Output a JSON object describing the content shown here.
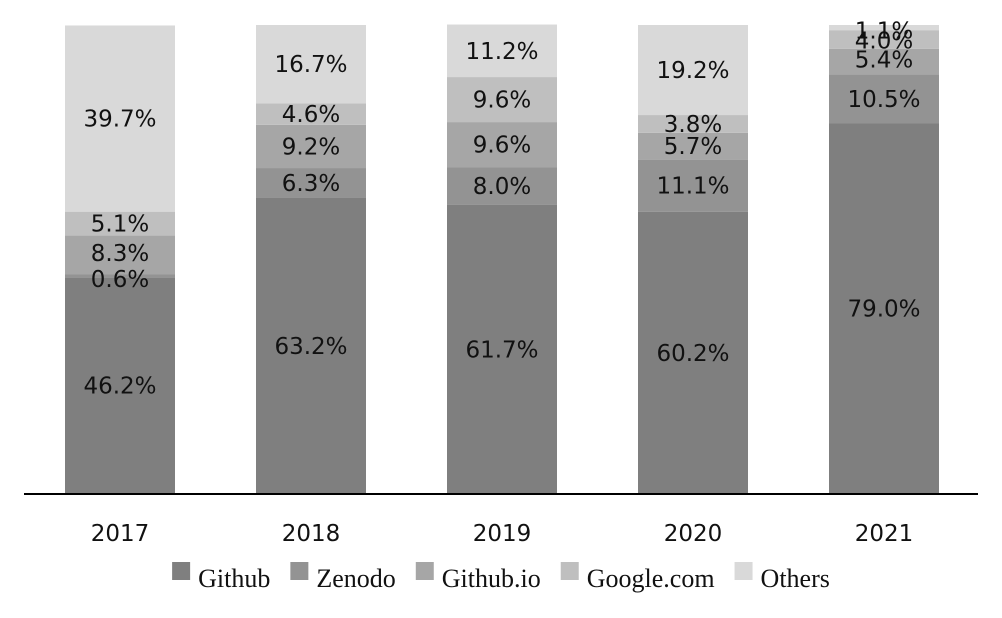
{
  "chart_data": {
    "type": "bar",
    "stacked": true,
    "normalized_percent": true,
    "categories": [
      "2017",
      "2018",
      "2019",
      "2020",
      "2021"
    ],
    "series": [
      {
        "name": "Github",
        "color": "#7f7f7f",
        "values": [
          46.2,
          63.2,
          61.7,
          60.2,
          79.0
        ]
      },
      {
        "name": "Zenodo",
        "color": "#939393",
        "values": [
          0.6,
          6.3,
          8.0,
          11.1,
          10.5
        ]
      },
      {
        "name": "Github.io",
        "color": "#a6a6a6",
        "values": [
          8.3,
          9.2,
          9.6,
          5.7,
          5.4
        ]
      },
      {
        "name": "Google.com",
        "color": "#bfbfbf",
        "values": [
          5.1,
          4.6,
          9.6,
          3.8,
          4.0
        ]
      },
      {
        "name": "Others",
        "color": "#d9d9d9",
        "values": [
          39.7,
          16.7,
          11.2,
          19.2,
          1.1
        ]
      }
    ],
    "data_labels": [
      [
        "46.2%",
        "63.2%",
        "61.7%",
        "60.2%",
        "79.0%"
      ],
      [
        "0.6%",
        "6.3%",
        "8.0%",
        "11.1%",
        "10.5%"
      ],
      [
        "8.3%",
        "9.2%",
        "9.6%",
        "5.7%",
        "5.4%"
      ],
      [
        "5.1%",
        "4.6%",
        "9.6%",
        "3.8%",
        "4.0%"
      ],
      [
        "39.7%",
        "16.7%",
        "11.2%",
        "19.2%",
        "1.1%"
      ]
    ],
    "ylim": [
      0,
      100
    ],
    "y_axis_visible": false,
    "grid": false,
    "legend": "bottom-center"
  }
}
